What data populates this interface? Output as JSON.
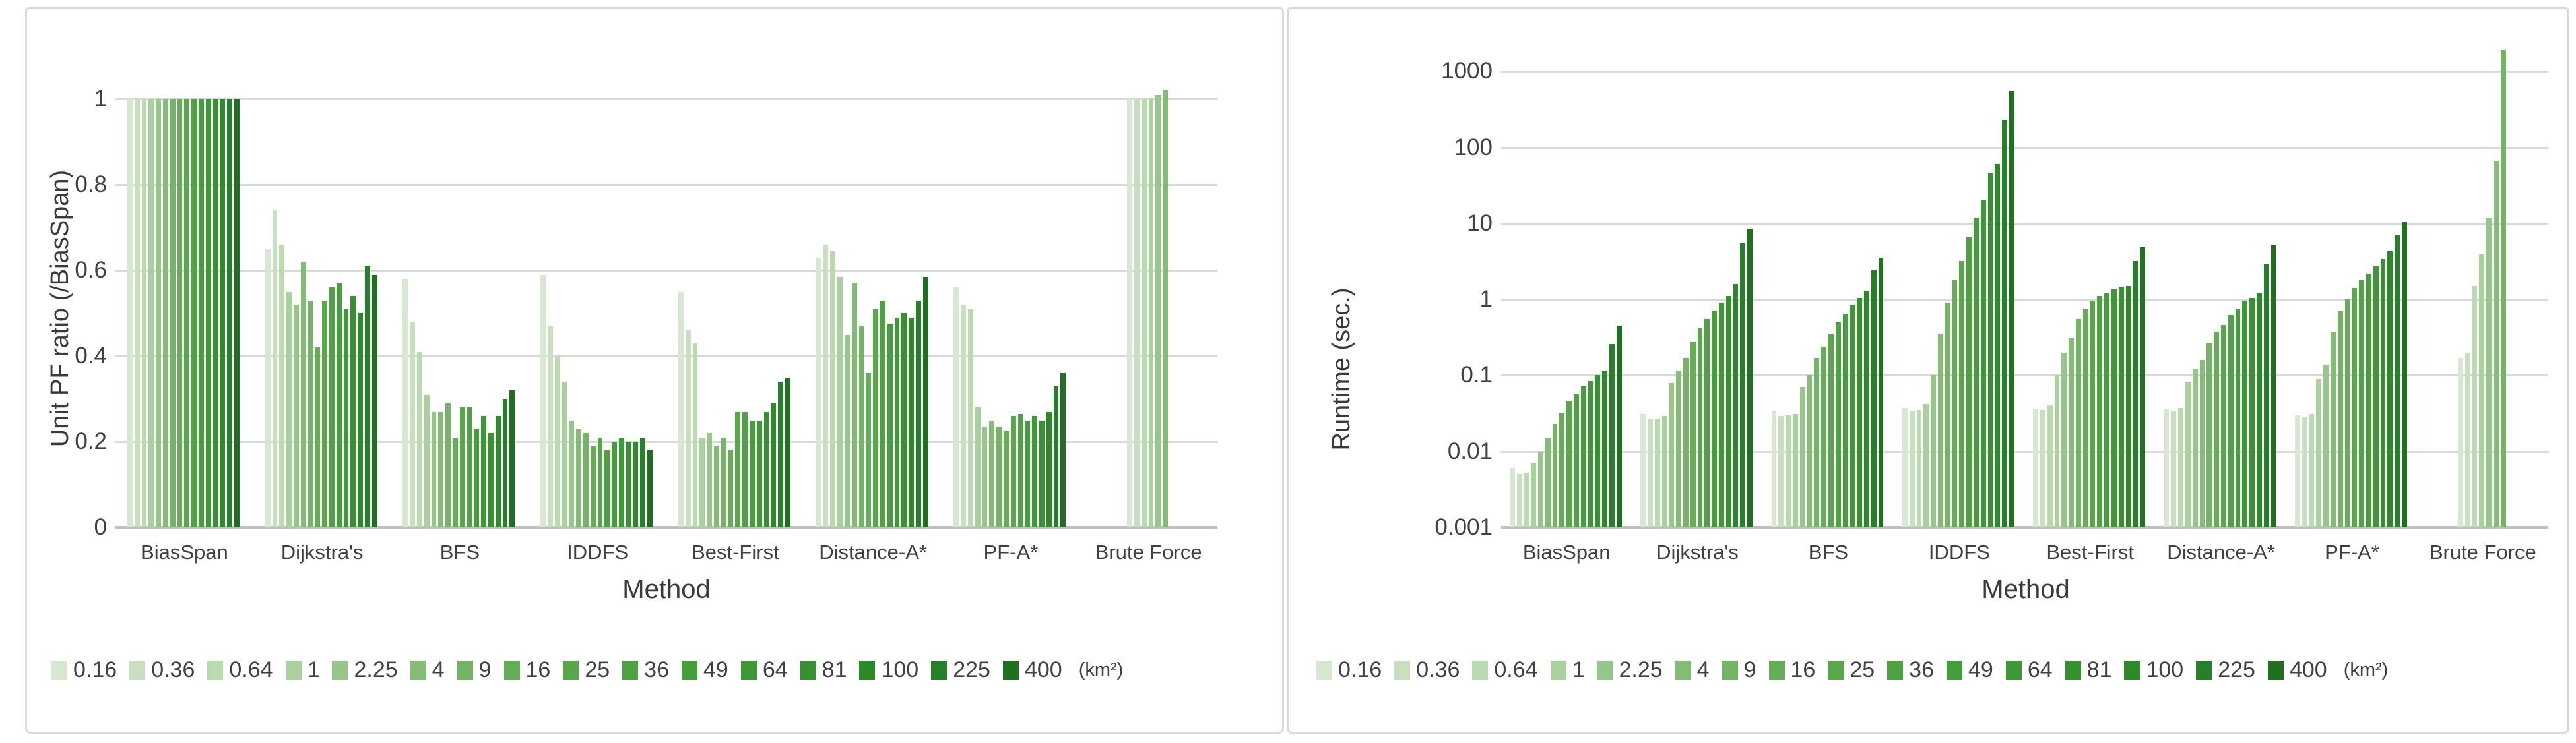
{
  "page": {
    "background": "#ffffff",
    "panel_border_color": "#d9d9d9",
    "gridline_color": "#d9d9d9",
    "axisline_color": "#bfbfbf"
  },
  "legend": {
    "unit_suffix": "(km²)",
    "items": [
      {
        "label": "0.16",
        "color": "#d7e8d0"
      },
      {
        "label": "0.36",
        "color": "#c9e0c0"
      },
      {
        "label": "0.64",
        "color": "#badab0"
      },
      {
        "label": "1",
        "color": "#a9d19e"
      },
      {
        "label": "2.25",
        "color": "#97c68b"
      },
      {
        "label": "4",
        "color": "#84bc75"
      },
      {
        "label": "9",
        "color": "#73b465"
      },
      {
        "label": "16",
        "color": "#65ad57"
      },
      {
        "label": "25",
        "color": "#58a74b"
      },
      {
        "label": "36",
        "color": "#4ea243"
      },
      {
        "label": "49",
        "color": "#459e3c"
      },
      {
        "label": "64",
        "color": "#3d9935"
      },
      {
        "label": "81",
        "color": "#35922e"
      },
      {
        "label": "100",
        "color": "#2d8a28"
      },
      {
        "label": "225",
        "color": "#26802a"
      },
      {
        "label": "400",
        "color": "#1f701f"
      }
    ]
  },
  "chart_data": [
    {
      "type": "bar",
      "title": "",
      "xlabel": "Method",
      "ylabel": "Unit PF ratio (/BiasSpan)",
      "yscale": "linear",
      "ylim": [
        0,
        1.1
      ],
      "yticks": [
        0,
        0.2,
        0.4,
        0.6,
        0.8,
        1
      ],
      "ytick_labels": [
        "0",
        "0.2",
        "0.4",
        "0.6",
        "0.8",
        "1"
      ],
      "grid": true,
      "legend_position": "bottom",
      "categories": [
        "BiasSpan",
        "Dijkstra's",
        "BFS",
        "IDDFS",
        "Best-First",
        "Distance-A*",
        "PF-A*",
        "Brute Force"
      ],
      "series": [
        {
          "name": "0.16",
          "values": [
            1,
            0.65,
            0.58,
            0.59,
            0.55,
            0.63,
            0.56,
            1
          ]
        },
        {
          "name": "0.36",
          "values": [
            1,
            0.74,
            0.48,
            0.47,
            0.46,
            0.66,
            0.52,
            1
          ]
        },
        {
          "name": "0.64",
          "values": [
            1,
            0.66,
            0.41,
            0.4,
            0.43,
            0.645,
            0.51,
            1
          ]
        },
        {
          "name": "1",
          "values": [
            1,
            0.55,
            0.31,
            0.34,
            0.21,
            0.585,
            0.28,
            1
          ]
        },
        {
          "name": "2.25",
          "values": [
            1,
            0.52,
            0.27,
            0.25,
            0.22,
            0.45,
            0.235,
            1.01
          ]
        },
        {
          "name": "4",
          "values": [
            1,
            0.62,
            0.27,
            0.23,
            0.19,
            0.57,
            0.25,
            1.02
          ]
        },
        {
          "name": "9",
          "values": [
            1,
            0.53,
            0.29,
            0.22,
            0.21,
            0.47,
            0.235,
            null
          ]
        },
        {
          "name": "16",
          "values": [
            1,
            0.42,
            0.21,
            0.19,
            0.18,
            0.36,
            0.225,
            null
          ]
        },
        {
          "name": "25",
          "values": [
            1,
            0.53,
            0.28,
            0.21,
            0.27,
            0.51,
            0.26,
            null
          ]
        },
        {
          "name": "36",
          "values": [
            1,
            0.56,
            0.28,
            0.18,
            0.27,
            0.53,
            0.265,
            null
          ]
        },
        {
          "name": "49",
          "values": [
            1,
            0.57,
            0.23,
            0.2,
            0.25,
            0.475,
            0.25,
            null
          ]
        },
        {
          "name": "64",
          "values": [
            1,
            0.51,
            0.26,
            0.21,
            0.25,
            0.49,
            0.26,
            null
          ]
        },
        {
          "name": "81",
          "values": [
            1,
            0.54,
            0.22,
            0.2,
            0.27,
            0.5,
            0.25,
            null
          ]
        },
        {
          "name": "100",
          "values": [
            1,
            0.5,
            0.26,
            0.2,
            0.29,
            0.49,
            0.27,
            null
          ]
        },
        {
          "name": "225",
          "values": [
            1,
            0.61,
            0.3,
            0.21,
            0.34,
            0.53,
            0.33,
            null
          ]
        },
        {
          "name": "400",
          "values": [
            1,
            0.59,
            0.32,
            0.18,
            0.35,
            0.585,
            0.36,
            null
          ]
        }
      ]
    },
    {
      "type": "bar",
      "title": "",
      "xlabel": "Method",
      "ylabel": "Runtime (sec.)",
      "yscale": "log",
      "ylim": [
        0.001,
        1000
      ],
      "yticks": [
        1000,
        100,
        10,
        1,
        0.1,
        0.01,
        0.001
      ],
      "ytick_labels": [
        "1000",
        "100",
        "10",
        "1",
        "0.1",
        "0.01",
        "0.001"
      ],
      "grid": true,
      "legend_position": "bottom",
      "categories": [
        "BiasSpan",
        "Dijkstra's",
        "BFS",
        "IDDFS",
        "Best-First",
        "Distance-A*",
        "PF-A*",
        "Brute Force"
      ],
      "series": [
        {
          "name": "0.16",
          "values": [
            0.006,
            0.031,
            0.034,
            0.037,
            0.036,
            0.036,
            0.03,
            0.17
          ]
        },
        {
          "name": "0.36",
          "values": [
            0.005,
            0.027,
            0.029,
            0.034,
            0.035,
            0.034,
            0.028,
            0.2
          ]
        },
        {
          "name": "0.64",
          "values": [
            0.0052,
            0.027,
            0.03,
            0.035,
            0.04,
            0.037,
            0.031,
            1.5
          ]
        },
        {
          "name": "1",
          "values": [
            0.007,
            0.029,
            0.031,
            0.042,
            0.1,
            0.083,
            0.09,
            3.9
          ]
        },
        {
          "name": "2.25",
          "values": [
            0.01,
            0.08,
            0.07,
            0.1,
            0.2,
            0.12,
            0.14,
            12
          ]
        },
        {
          "name": "4",
          "values": [
            0.015,
            0.115,
            0.1,
            0.35,
            0.31,
            0.16,
            0.37,
            67
          ]
        },
        {
          "name": "9",
          "values": [
            0.023,
            0.17,
            0.17,
            0.9,
            0.55,
            0.27,
            0.7,
            1900
          ]
        },
        {
          "name": "16",
          "values": [
            0.032,
            0.28,
            0.24,
            1.8,
            0.76,
            0.38,
            1.0,
            null
          ]
        },
        {
          "name": "25",
          "values": [
            0.046,
            0.42,
            0.35,
            3.2,
            0.96,
            0.46,
            1.4,
            null
          ]
        },
        {
          "name": "36",
          "values": [
            0.056,
            0.55,
            0.5,
            6.5,
            1.1,
            0.62,
            1.8,
            null
          ]
        },
        {
          "name": "49",
          "values": [
            0.072,
            0.72,
            0.65,
            12,
            1.2,
            0.76,
            2.2,
            null
          ]
        },
        {
          "name": "64",
          "values": [
            0.085,
            0.9,
            0.85,
            20,
            1.35,
            0.96,
            2.7,
            null
          ]
        },
        {
          "name": "81",
          "values": [
            0.1,
            1.1,
            1.05,
            45,
            1.45,
            1.05,
            3.4,
            null
          ]
        },
        {
          "name": "100",
          "values": [
            0.115,
            1.6,
            1.3,
            60,
            1.5,
            1.2,
            4.3,
            null
          ]
        },
        {
          "name": "225",
          "values": [
            0.26,
            5.5,
            2.4,
            230,
            3.2,
            2.9,
            7.0,
            null
          ]
        },
        {
          "name": "400",
          "values": [
            0.45,
            8.5,
            3.5,
            550,
            4.9,
            5.2,
            10.5,
            null
          ]
        }
      ]
    }
  ]
}
